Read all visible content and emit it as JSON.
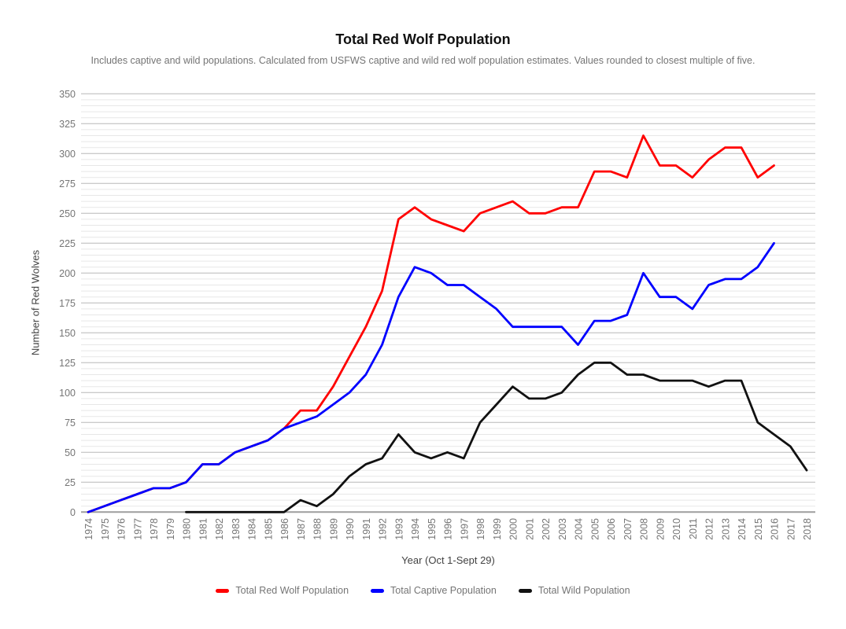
{
  "chart_data": {
    "type": "line",
    "title": "Total Red Wolf Population",
    "subtitle": "Includes captive and wild populations. Calculated from USFWS captive and wild red wolf population estimates. Values rounded to closest multiple of five.",
    "xlabel": "Year (Oct 1-Sept 29)",
    "ylabel": "Number of Red Wolves",
    "ylim": [
      0,
      350
    ],
    "y_tick_step": 25,
    "y_minor_step": 5,
    "grid": true,
    "legend_position": "bottom",
    "x": [
      1974,
      1975,
      1976,
      1977,
      1978,
      1979,
      1980,
      1981,
      1982,
      1983,
      1984,
      1985,
      1986,
      1987,
      1988,
      1989,
      1990,
      1991,
      1992,
      1993,
      1994,
      1995,
      1996,
      1997,
      1998,
      1999,
      2000,
      2001,
      2002,
      2003,
      2004,
      2005,
      2006,
      2007,
      2008,
      2009,
      2010,
      2011,
      2012,
      2013,
      2014,
      2015,
      2016,
      2017,
      2018
    ],
    "series": [
      {
        "name": "Total Red Wolf Population",
        "color": "#ff0000",
        "values": [
          0,
          5,
          10,
          15,
          20,
          20,
          25,
          40,
          40,
          50,
          55,
          60,
          70,
          85,
          85,
          105,
          130,
          155,
          185,
          245,
          255,
          245,
          240,
          235,
          250,
          255,
          260,
          250,
          250,
          255,
          255,
          285,
          285,
          280,
          315,
          290,
          290,
          280,
          295,
          305,
          305,
          280,
          290,
          null,
          null
        ]
      },
      {
        "name": "Total Captive Population",
        "color": "#0000ff",
        "values": [
          0,
          5,
          10,
          15,
          20,
          20,
          25,
          40,
          40,
          50,
          55,
          60,
          70,
          75,
          80,
          90,
          100,
          115,
          140,
          180,
          205,
          200,
          190,
          190,
          180,
          170,
          155,
          155,
          155,
          155,
          140,
          160,
          160,
          165,
          200,
          180,
          180,
          170,
          190,
          195,
          195,
          205,
          225,
          null,
          null
        ]
      },
      {
        "name": "Total Wild Population",
        "color": "#111111",
        "values": [
          null,
          null,
          null,
          null,
          null,
          null,
          0,
          0,
          0,
          0,
          0,
          0,
          0,
          10,
          5,
          15,
          30,
          40,
          45,
          65,
          50,
          45,
          50,
          45,
          75,
          90,
          105,
          95,
          95,
          100,
          115,
          125,
          125,
          115,
          115,
          110,
          110,
          110,
          105,
          110,
          110,
          75,
          65,
          55,
          35
        ]
      }
    ]
  }
}
